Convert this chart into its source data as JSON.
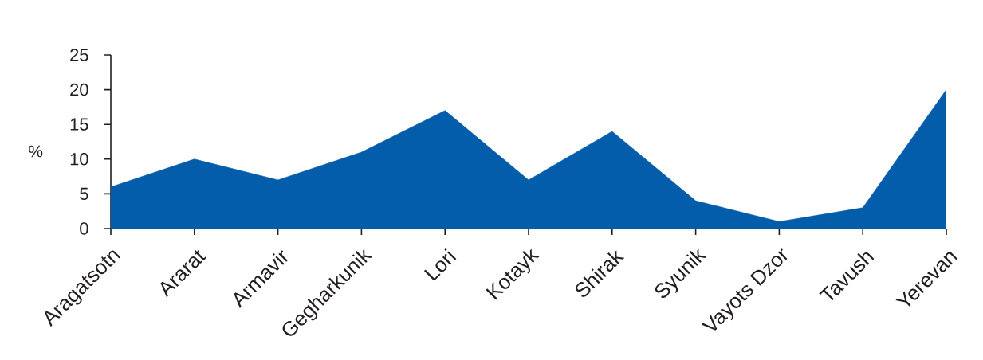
{
  "chart_data": {
    "type": "area",
    "ylabel": "%",
    "categories": [
      "Aragatsotn",
      "Ararat",
      "Armavir",
      "Gegharkunik",
      "Lori",
      "Kotayk",
      "Shirak",
      "Syunik",
      "Vayots Dzor",
      "Tavush",
      "Yerevan"
    ],
    "values": [
      6,
      10,
      7,
      11,
      17,
      7,
      14,
      4,
      1,
      3,
      20
    ],
    "color": "#035dab",
    "ylim": [
      0,
      25
    ],
    "yticks": [
      0,
      5,
      10,
      15,
      20,
      25
    ]
  }
}
